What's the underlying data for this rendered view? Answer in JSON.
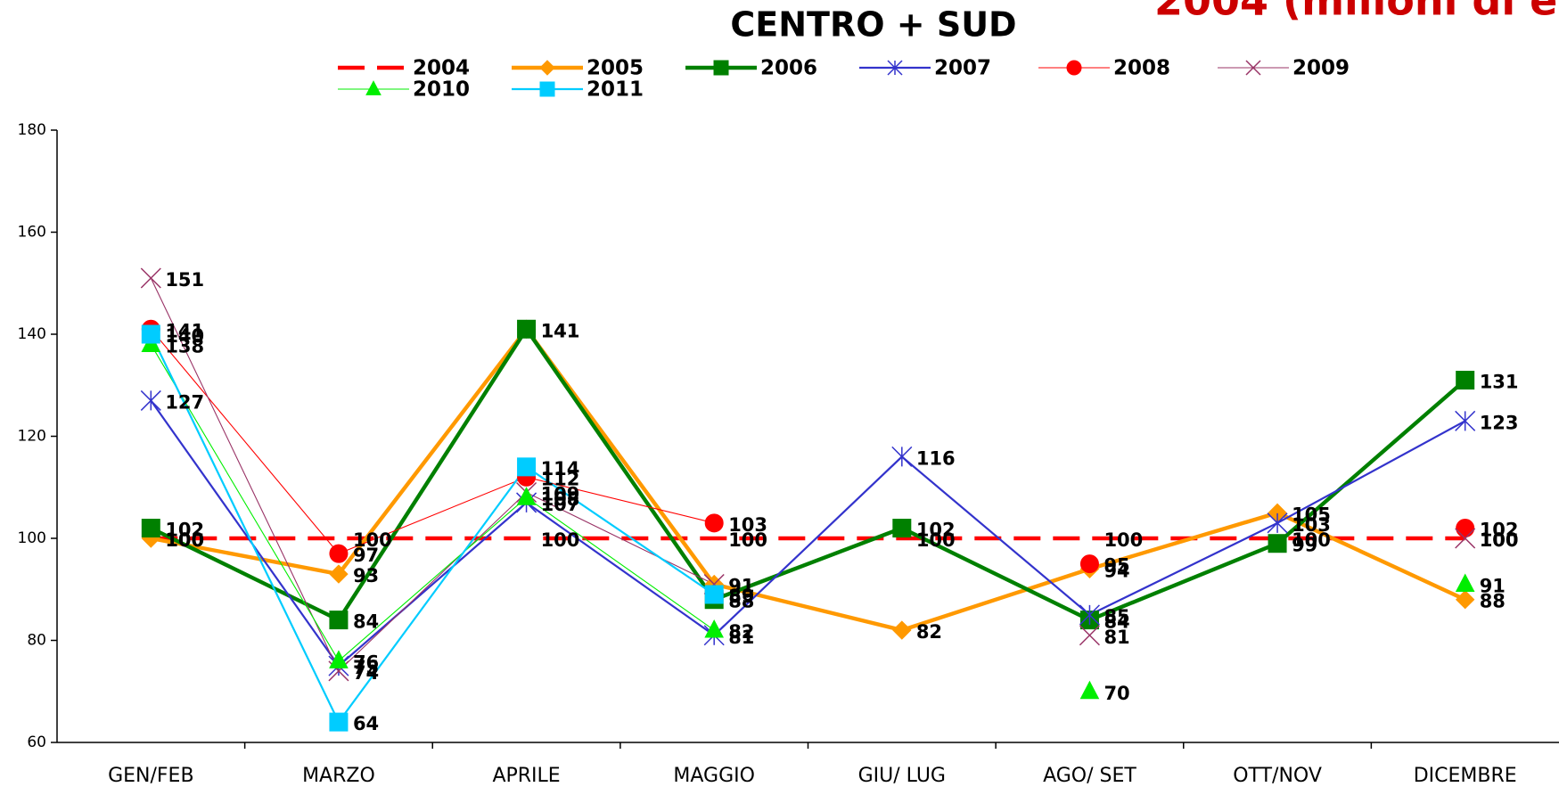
{
  "chart_data": {
    "type": "line",
    "title": "CENTRO + SUD",
    "subtitle": "2004 (milioni di e",
    "categories": [
      "GEN/FEB",
      "MARZO",
      "APRILE",
      "MAGGIO",
      "GIU/ LUG",
      "AGO/ SET",
      "OTT/NOV",
      "DICEMBRE"
    ],
    "ylim": [
      60,
      180
    ],
    "yticks": [
      60,
      80,
      100,
      120,
      140,
      160,
      180
    ],
    "grid": false,
    "legend": "top",
    "series": [
      {
        "name": "2004",
        "color": "#ff0000",
        "marker": "none",
        "line_width": 4,
        "dashed": true,
        "values": [
          100,
          100,
          100,
          100,
          100,
          100,
          100,
          100
        ]
      },
      {
        "name": "2005",
        "color": "#ff9900",
        "marker": "diamond",
        "line_width": 4,
        "dashed": false,
        "values": [
          100,
          93,
          141,
          91,
          82,
          94,
          105,
          88
        ]
      },
      {
        "name": "2006",
        "color": "#008000",
        "marker": "square",
        "line_width": 4,
        "dashed": false,
        "values": [
          102,
          84,
          141,
          88,
          102,
          84,
          99,
          131
        ]
      },
      {
        "name": "2007",
        "color": "#3333cc",
        "marker": "star",
        "line_width": 2,
        "dashed": false,
        "values": [
          127,
          75,
          107,
          81,
          116,
          85,
          103,
          123
        ]
      },
      {
        "name": "2008",
        "color": "#ff0000",
        "marker": "circle",
        "line_width": 1,
        "dashed": false,
        "values": [
          141,
          97,
          112,
          103,
          null,
          95,
          null,
          102
        ]
      },
      {
        "name": "2009",
        "color": "#993366",
        "marker": "x",
        "line_width": 1,
        "dashed": false,
        "values": [
          151,
          74,
          109,
          91,
          null,
          81,
          null,
          100
        ]
      },
      {
        "name": "2010",
        "color": "#00ee00",
        "marker": "triangle",
        "line_width": 1,
        "dashed": false,
        "values": [
          138,
          76,
          108,
          82,
          null,
          70,
          null,
          91
        ]
      },
      {
        "name": "2011",
        "color": "#00ccff",
        "marker": "square",
        "line_width": 2,
        "dashed": false,
        "values": [
          140,
          64,
          114,
          89,
          null,
          null,
          null,
          null
        ]
      }
    ]
  }
}
